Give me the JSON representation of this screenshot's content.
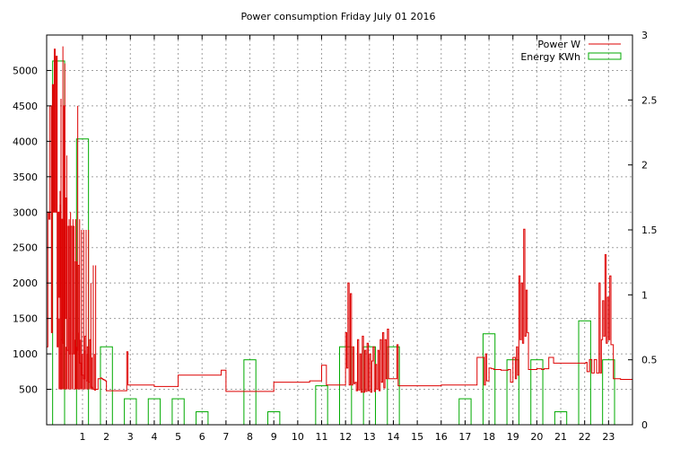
{
  "chart_data": {
    "type": "line",
    "title": "Power consumption Friday July 01 2016",
    "xlim": [
      -0.5,
      24
    ],
    "ylim": [
      0,
      5500
    ],
    "y2lim": [
      0,
      3
    ],
    "xticks": [
      1,
      2,
      3,
      4,
      5,
      6,
      7,
      8,
      9,
      10,
      11,
      12,
      13,
      14,
      15,
      16,
      17,
      18,
      19,
      20,
      21,
      22,
      23
    ],
    "yticks": [
      500,
      1000,
      1500,
      2000,
      2500,
      3000,
      3500,
      4000,
      4500,
      5000
    ],
    "y2ticks": [
      0,
      0.5,
      1,
      1.5,
      2,
      2.5,
      3
    ],
    "y2tick_labels": [
      "0",
      "0.5",
      "1",
      "1.5",
      "2",
      "2.5",
      "3"
    ],
    "grid": true,
    "legend_position": "top-right",
    "series": [
      {
        "name": "Power W",
        "axis": "left",
        "color": "#dd0000",
        "x": [
          -0.5,
          -0.45,
          -0.4,
          -0.36,
          -0.3,
          -0.26,
          -0.22,
          -0.18,
          -0.14,
          -0.1,
          -0.06,
          -0.02,
          0.02,
          0.06,
          0.1,
          0.14,
          0.18,
          0.22,
          0.26,
          0.3,
          0.35,
          0.4,
          0.45,
          0.5,
          0.55,
          0.6,
          0.65,
          0.7,
          0.75,
          0.8,
          0.85,
          0.9,
          0.95,
          1.0,
          1.05,
          1.1,
          1.15,
          1.2,
          1.25,
          1.3,
          1.35,
          1.4,
          1.45,
          1.5,
          1.55,
          1.6,
          1.65,
          1.7,
          1.75,
          1.8,
          1.85,
          1.9,
          1.95,
          2.0,
          2.3,
          2.7,
          2.8,
          2.85,
          2.9,
          2.95,
          3.0,
          3.1,
          3.3,
          3.5,
          3.7,
          4.0,
          4.2,
          4.5,
          4.8,
          5.0,
          5.3,
          5.5,
          6.0,
          6.3,
          6.5,
          6.8,
          7.0,
          7.5,
          7.8,
          8.0,
          8.5,
          8.8,
          8.9,
          9.0,
          9.5,
          10.0,
          10.5,
          10.8,
          10.9,
          11.0,
          11.2,
          11.5,
          11.8,
          11.9,
          12.0,
          12.05,
          12.1,
          12.15,
          12.2,
          12.25,
          12.3,
          12.35,
          12.4,
          12.45,
          12.5,
          12.55,
          12.6,
          12.65,
          12.7,
          12.75,
          12.8,
          12.85,
          12.9,
          12.95,
          13.0,
          13.05,
          13.1,
          13.15,
          13.2,
          13.25,
          13.3,
          13.35,
          13.4,
          13.45,
          13.5,
          13.55,
          13.6,
          13.65,
          13.7,
          13.75,
          13.8,
          13.85,
          13.9,
          13.95,
          14.0,
          14.05,
          14.1,
          14.15,
          14.2,
          14.3,
          14.5,
          14.9,
          14.95,
          15.0,
          15.5,
          16.0,
          16.5,
          17.0,
          17.5,
          17.8,
          17.85,
          17.9,
          18.0,
          18.1,
          18.2,
          18.3,
          18.5,
          18.8,
          18.9,
          19.0,
          19.1,
          19.15,
          19.2,
          19.25,
          19.3,
          19.35,
          19.4,
          19.45,
          19.5,
          19.55,
          19.6,
          19.65,
          19.7,
          20.0,
          20.2,
          20.3,
          20.5,
          20.7,
          21.0,
          21.3,
          21.7,
          22.0,
          22.05,
          22.1,
          22.2,
          22.3,
          22.4,
          22.5,
          22.6,
          22.65,
          22.7,
          22.75,
          22.8,
          22.85,
          22.9,
          22.95,
          23.0,
          23.05,
          23.1,
          23.2,
          23.5,
          23.7,
          24.0
        ],
        "y": [
          1100,
          3000,
          2900,
          4500,
          1300,
          4800,
          3000,
          5300,
          3000,
          5200,
          1100,
          3000,
          1800,
          3100,
          1200,
          2900,
          1150,
          4500,
          1500,
          3200,
          1050,
          2800,
          1000,
          2800,
          1000,
          2800,
          1000,
          2300,
          1050,
          2250,
          870,
          870,
          700,
          700,
          650,
          1250,
          620,
          1100,
          600,
          1200,
          530,
          520,
          500,
          490,
          500,
          500,
          650,
          650,
          660,
          650,
          640,
          630,
          620,
          480,
          480,
          480,
          480,
          1030,
          560,
          560,
          560,
          560,
          560,
          560,
          560,
          540,
          540,
          540,
          540,
          700,
          700,
          700,
          700,
          700,
          700,
          770,
          470,
          470,
          470,
          470,
          470,
          470,
          470,
          600,
          600,
          600,
          620,
          620,
          620,
          840,
          560,
          560,
          560,
          560,
          1300,
          800,
          2000,
          560,
          1850,
          560,
          1100,
          580,
          600,
          480,
          1200,
          490,
          1000,
          460,
          1250,
          460,
          1050,
          470,
          1150,
          480,
          1000,
          460,
          900,
          1100,
          470,
          850,
          500,
          1050,
          480,
          1200,
          600,
          1300,
          520,
          1200,
          650,
          1350,
          650,
          650,
          650,
          650,
          650,
          650,
          650,
          1130,
          550,
          550,
          550,
          550,
          550,
          550,
          550,
          560,
          560,
          560,
          950,
          560,
          1000,
          620,
          800,
          790,
          780,
          780,
          770,
          780,
          600,
          950,
          650,
          1100,
          700,
          2100,
          1200,
          2000,
          1150,
          2760,
          1250,
          1900,
          1300,
          780,
          780,
          790,
          780,
          790,
          950,
          870,
          870,
          870,
          870,
          870,
          880,
          750,
          920,
          730,
          920,
          730,
          2000,
          730,
          1200,
          1750,
          1250,
          2400,
          1150,
          1800,
          1200,
          2100,
          1130,
          650,
          640,
          640,
          870
        ],
        "points": [
          [
            0.02,
            1500
          ],
          [
            0.06,
            3300
          ],
          [
            0.1,
            4600
          ],
          [
            0.14,
            1200
          ],
          [
            0.18,
            5340
          ],
          [
            0.22,
            1150
          ],
          [
            0.26,
            5100
          ],
          [
            0.3,
            1100
          ],
          [
            0.34,
            3800
          ],
          [
            0.4,
            1200
          ],
          [
            0.44,
            2900
          ],
          [
            0.5,
            3000
          ],
          [
            0.55,
            1300
          ],
          [
            0.6,
            2900
          ],
          [
            0.68,
            1200
          ],
          [
            0.72,
            2900
          ],
          [
            0.76,
            1100
          ],
          [
            0.8,
            4500
          ],
          [
            0.84,
            1300
          ],
          [
            0.88,
            2900
          ],
          [
            0.92,
            1200
          ],
          [
            0.96,
            2750
          ],
          [
            1.0,
            1000
          ],
          [
            1.05,
            2750
          ],
          [
            1.1,
            1050
          ],
          [
            1.15,
            2750
          ],
          [
            1.2,
            1000
          ],
          [
            1.25,
            2750
          ],
          [
            1.3,
            1000
          ],
          [
            1.35,
            2000
          ],
          [
            1.4,
            950
          ],
          [
            1.45,
            2250
          ],
          [
            1.5,
            1000
          ],
          [
            1.55,
            2250
          ]
        ],
        "data_points_note": ""
      },
      {
        "name": "Energy KWh",
        "axis": "right",
        "color": "#00aa00",
        "hours": [
          0,
          1,
          2,
          3,
          4,
          5,
          6,
          7,
          8,
          9,
          10,
          11,
          12,
          13,
          14,
          15,
          16,
          17,
          18,
          19,
          20,
          21,
          22,
          23
        ],
        "values": [
          2.8,
          2.2,
          0.6,
          0.2,
          0.2,
          0.2,
          0.1,
          0.0,
          0.5,
          0.1,
          0.0,
          0.3,
          0.6,
          0.6,
          0.6,
          0.0,
          0.0,
          0.2,
          0.7,
          0.5,
          0.5,
          0.1,
          0.8,
          0.5
        ]
      }
    ]
  }
}
